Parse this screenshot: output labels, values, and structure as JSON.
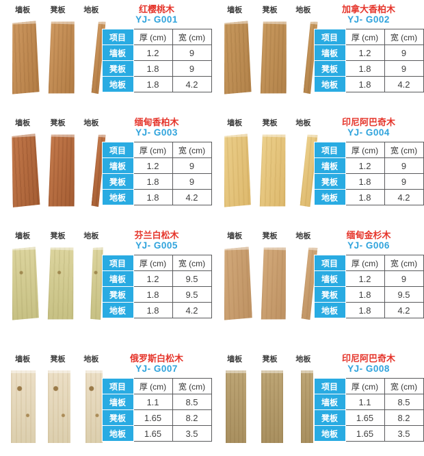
{
  "shared": {
    "plank_labels": [
      "墙板",
      "凳板",
      "地板"
    ],
    "table_headers": {
      "item": "项目",
      "thickness": "厚 (cm)",
      "width": "宽 (cm)"
    }
  },
  "colors": {
    "product_name_red": "#e5352b",
    "model_blue": "#2fa3dc",
    "table_accent_cyan": "#29abe2",
    "table_border": "#58595b",
    "value_text": "#404040"
  },
  "products": [
    {
      "name": "红樱桃木",
      "model": "YJ- G001",
      "wood_color": "#c08a52",
      "rows": [
        [
          "墙板",
          "1.2",
          "9"
        ],
        [
          "凳板",
          "1.8",
          "9"
        ],
        [
          "地板",
          "1.8",
          "4.2"
        ]
      ]
    },
    {
      "name": "加拿大香柏木",
      "model": "YJ- G002",
      "wood_color": "#bd8e54",
      "rows": [
        [
          "墙板",
          "1.2",
          "9"
        ],
        [
          "凳板",
          "1.8",
          "9"
        ],
        [
          "地板",
          "1.8",
          "4.2"
        ]
      ]
    },
    {
      "name": "缅甸香柏木",
      "model": "YJ- G003",
      "wood_color": "#b46c40",
      "rows": [
        [
          "墙板",
          "1.2",
          "9"
        ],
        [
          "凳板",
          "1.8",
          "9"
        ],
        [
          "地板",
          "1.8",
          "4.2"
        ]
      ]
    },
    {
      "name": "印尼阿巴奇木",
      "model": "YJ- G004",
      "wood_color": "#e5c47c",
      "rows": [
        [
          "墙板",
          "1.2",
          "9"
        ],
        [
          "凳板",
          "1.8",
          "9"
        ],
        [
          "地板",
          "1.8",
          "4.2"
        ]
      ]
    },
    {
      "name": "芬兰白松木",
      "model": "YJ- G005",
      "wood_color": "#d2cb91",
      "rows": [
        [
          "墙板",
          "1.2",
          "9.5"
        ],
        [
          "凳板",
          "1.8",
          "9.5"
        ],
        [
          "地板",
          "1.8",
          "4.2"
        ]
      ]
    },
    {
      "name": "缅甸金杉木",
      "model": "YJ- G006",
      "wood_color": "#caa070",
      "rows": [
        [
          "墙板",
          "1.2",
          "9"
        ],
        [
          "凳板",
          "1.8",
          "9.5"
        ],
        [
          "地板",
          "1.8",
          "4.2"
        ]
      ]
    },
    {
      "name": "俄罗斯白松木",
      "model": "YJ- G007",
      "wood_color": "#e4d7ba",
      "rows": [
        [
          "墙板",
          "1.1",
          "8.5"
        ],
        [
          "凳板",
          "1.65",
          "8.2"
        ],
        [
          "地板",
          "1.65",
          "3.5"
        ]
      ]
    },
    {
      "name": "印尼阿巴奇木",
      "model": "YJ- G008",
      "wood_color": "#b39b6b",
      "rows": [
        [
          "墙板",
          "1.1",
          "8.5"
        ],
        [
          "凳板",
          "1.65",
          "8.2"
        ],
        [
          "地板",
          "1.65",
          "3.5"
        ]
      ]
    }
  ]
}
